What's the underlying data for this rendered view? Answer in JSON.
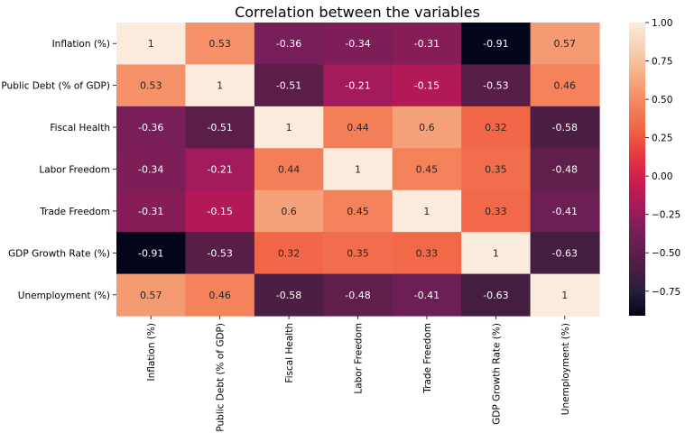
{
  "chart_data": {
    "type": "heatmap",
    "title": "Correlation between the variables",
    "xlabel": "",
    "ylabel": "",
    "row_labels": [
      "Inflation (%)",
      "Public Debt (% of GDP)",
      "Fiscal Health",
      "Labor Freedom",
      "Trade Freedom",
      "GDP Growth Rate (%)",
      "Unemployment (%)"
    ],
    "col_labels": [
      "Inflation (%)",
      "Public Debt (% of GDP)",
      "Fiscal Health",
      "Labor Freedom",
      "Trade Freedom",
      "GDP Growth Rate (%)",
      "Unemployment (%)"
    ],
    "values": [
      [
        1,
        0.53,
        -0.36,
        -0.34,
        -0.31,
        -0.91,
        0.57
      ],
      [
        0.53,
        1,
        -0.51,
        -0.21,
        -0.15,
        -0.53,
        0.46
      ],
      [
        -0.36,
        -0.51,
        1,
        0.44,
        0.6,
        0.32,
        -0.58
      ],
      [
        -0.34,
        -0.21,
        0.44,
        1,
        0.45,
        0.35,
        -0.48
      ],
      [
        -0.31,
        -0.15,
        0.6,
        0.45,
        1,
        0.33,
        -0.41
      ],
      [
        -0.91,
        -0.53,
        0.32,
        0.35,
        0.33,
        1,
        -0.63
      ],
      [
        0.57,
        0.46,
        -0.58,
        -0.48,
        -0.41,
        -0.63,
        1
      ]
    ],
    "cell_labels": [
      [
        "1",
        "0.53",
        "-0.36",
        "-0.34",
        "-0.31",
        "-0.91",
        "0.57"
      ],
      [
        "0.53",
        "1",
        "-0.51",
        "-0.21",
        "-0.15",
        "-0.53",
        "0.46"
      ],
      [
        "-0.36",
        "-0.51",
        "1",
        "0.44",
        "0.6",
        "0.32",
        "-0.58"
      ],
      [
        "-0.34",
        "-0.21",
        "0.44",
        "1",
        "0.45",
        "0.35",
        "-0.48"
      ],
      [
        "-0.31",
        "-0.15",
        "0.6",
        "0.45",
        "1",
        "0.33",
        "-0.41"
      ],
      [
        "-0.91",
        "-0.53",
        "0.32",
        "0.35",
        "0.33",
        "1",
        "-0.63"
      ],
      [
        "0.57",
        "0.46",
        "-0.58",
        "-0.48",
        "-0.41",
        "-0.63",
        "1"
      ]
    ],
    "colorbar": {
      "range": [
        -0.91,
        1.0
      ],
      "ticks": [
        1.0,
        0.75,
        0.5,
        0.25,
        0.0,
        -0.25,
        -0.5,
        -0.75
      ],
      "tick_labels": [
        "1.00",
        "0.75",
        "0.50",
        "0.25",
        "0.00",
        "−0.25",
        "−0.50",
        "−0.75"
      ],
      "colormap": "rocket",
      "colormap_stops": [
        "#03051a",
        "#2c1e3e",
        "#511e43",
        "#701f57",
        "#a11a5b",
        "#cb1b4f",
        "#e5383e",
        "#f16445",
        "#f4875e",
        "#f6ad86",
        "#f6d0b4",
        "#faebdd"
      ]
    },
    "annotation_colors": {
      "on_dark": "#ffffff",
      "on_light": "#262626"
    },
    "grid": false
  }
}
